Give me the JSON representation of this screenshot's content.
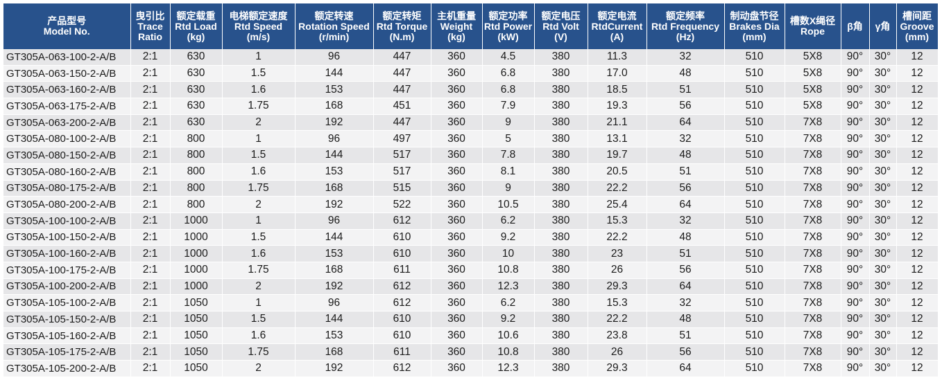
{
  "table": {
    "columns": [
      {
        "key": "model",
        "zh": "产品型号",
        "en": "Model No."
      },
      {
        "key": "trace_ratio",
        "zh": "曳引比",
        "en": "Trace Ratio"
      },
      {
        "key": "rtd_load",
        "zh": "额定载重",
        "en": "Rtd Load (kg)"
      },
      {
        "key": "rtd_speed",
        "zh": "电梯额定速度",
        "en": "Rtd Speed (m/s)"
      },
      {
        "key": "rotation_speed",
        "zh": "额定转速",
        "en": "Rotation Speed (r/min)"
      },
      {
        "key": "rtd_torque",
        "zh": "额定转矩",
        "en": "Rtd Torque (N.m)"
      },
      {
        "key": "weight",
        "zh": "主机重量",
        "en": "Weight (kg)"
      },
      {
        "key": "rtd_power",
        "zh": "额定功率",
        "en": "Rtd Power (kW)"
      },
      {
        "key": "rtd_volt",
        "zh": "额定电压",
        "en": "Rtd Volt (V)"
      },
      {
        "key": "rtd_current",
        "zh": "额定电流",
        "en": "RtdCurrent (A)"
      },
      {
        "key": "rtd_frequency",
        "zh": "额定频率",
        "en": "Rtd Frequency (Hz)"
      },
      {
        "key": "brakes_dia",
        "zh": "制动盘节径",
        "en": "Brakes Dia (mm)"
      },
      {
        "key": "rope",
        "zh": "槽数X绳径",
        "en": "Rope"
      },
      {
        "key": "beta",
        "zh": "β角",
        "en": ""
      },
      {
        "key": "gamma",
        "zh": "γ角",
        "en": ""
      },
      {
        "key": "groove",
        "zh": "槽间距",
        "en": "Groove (mm)"
      }
    ],
    "rows": [
      [
        "GT305A-063-100-2-A/B",
        "2:1",
        "630",
        "1",
        "96",
        "447",
        "360",
        "4.5",
        "380",
        "11.3",
        "32",
        "510",
        "5X8",
        "90°",
        "30°",
        "12"
      ],
      [
        "GT305A-063-150-2-A/B",
        "2:1",
        "630",
        "1.5",
        "144",
        "447",
        "360",
        "6.8",
        "380",
        "17.0",
        "48",
        "510",
        "5X8",
        "90°",
        "30°",
        "12"
      ],
      [
        "GT305A-063-160-2-A/B",
        "2:1",
        "630",
        "1.6",
        "153",
        "447",
        "360",
        "6.8",
        "380",
        "18.5",
        "51",
        "510",
        "5X8",
        "90°",
        "30°",
        "12"
      ],
      [
        "GT305A-063-175-2-A/B",
        "2:1",
        "630",
        "1.75",
        "168",
        "451",
        "360",
        "7.9",
        "380",
        "19.3",
        "56",
        "510",
        "5X8",
        "90°",
        "30°",
        "12"
      ],
      [
        "GT305A-063-200-2-A/B",
        "2:1",
        "630",
        "2",
        "192",
        "447",
        "360",
        "9",
        "380",
        "21.1",
        "64",
        "510",
        "7X8",
        "90°",
        "30°",
        "12"
      ],
      [
        "GT305A-080-100-2-A/B",
        "2:1",
        "800",
        "1",
        "96",
        "497",
        "360",
        "5",
        "380",
        "13.1",
        "32",
        "510",
        "7X8",
        "90°",
        "30°",
        "12"
      ],
      [
        "GT305A-080-150-2-A/B",
        "2:1",
        "800",
        "1.5",
        "144",
        "517",
        "360",
        "7.8",
        "380",
        "19.7",
        "48",
        "510",
        "7X8",
        "90°",
        "30°",
        "12"
      ],
      [
        "GT305A-080-160-2-A/B",
        "2:1",
        "800",
        "1.6",
        "153",
        "517",
        "360",
        "8.1",
        "380",
        "20.5",
        "51",
        "510",
        "7X8",
        "90°",
        "30°",
        "12"
      ],
      [
        "GT305A-080-175-2-A/B",
        "2:1",
        "800",
        "1.75",
        "168",
        "515",
        "360",
        "9",
        "380",
        "22.2",
        "56",
        "510",
        "7X8",
        "90°",
        "30°",
        "12"
      ],
      [
        "GT305A-080-200-2-A/B",
        "2:1",
        "800",
        "2",
        "192",
        "522",
        "360",
        "10.5",
        "380",
        "25.4",
        "64",
        "510",
        "7X8",
        "90°",
        "30°",
        "12"
      ],
      [
        "GT305A-100-100-2-A/B",
        "2:1",
        "1000",
        "1",
        "96",
        "612",
        "360",
        "6.2",
        "380",
        "15.3",
        "32",
        "510",
        "7X8",
        "90°",
        "30°",
        "12"
      ],
      [
        "GT305A-100-150-2-A/B",
        "2:1",
        "1000",
        "1.5",
        "144",
        "610",
        "360",
        "9.2",
        "380",
        "22.2",
        "48",
        "510",
        "7X8",
        "90°",
        "30°",
        "12"
      ],
      [
        "GT305A-100-160-2-A/B",
        "2:1",
        "1000",
        "1.6",
        "153",
        "610",
        "360",
        "10",
        "380",
        "23",
        "51",
        "510",
        "7X8",
        "90°",
        "30°",
        "12"
      ],
      [
        "GT305A-100-175-2-A/B",
        "2:1",
        "1000",
        "1.75",
        "168",
        "611",
        "360",
        "10.8",
        "380",
        "26",
        "56",
        "510",
        "7X8",
        "90°",
        "30°",
        "12"
      ],
      [
        "GT305A-100-200-2-A/B",
        "2:1",
        "1000",
        "2",
        "192",
        "612",
        "360",
        "12.3",
        "380",
        "29.3",
        "64",
        "510",
        "7X8",
        "90°",
        "30°",
        "12"
      ],
      [
        "GT305A-105-100-2-A/B",
        "2:1",
        "1050",
        "1",
        "96",
        "612",
        "360",
        "6.2",
        "380",
        "15.3",
        "32",
        "510",
        "7X8",
        "90°",
        "30°",
        "12"
      ],
      [
        "GT305A-105-150-2-A/B",
        "2:1",
        "1050",
        "1.5",
        "144",
        "610",
        "360",
        "9.2",
        "380",
        "22.2",
        "48",
        "510",
        "7X8",
        "90°",
        "30°",
        "12"
      ],
      [
        "GT305A-105-160-2-A/B",
        "2:1",
        "1050",
        "1.6",
        "153",
        "610",
        "360",
        "10.6",
        "380",
        "23.8",
        "51",
        "510",
        "7X8",
        "90°",
        "30°",
        "12"
      ],
      [
        "GT305A-105-175-2-A/B",
        "2:1",
        "1050",
        "1.75",
        "168",
        "611",
        "360",
        "10.8",
        "380",
        "26",
        "56",
        "510",
        "7X8",
        "90°",
        "30°",
        "12"
      ],
      [
        "GT305A-105-200-2-A/B",
        "2:1",
        "1050",
        "2",
        "192",
        "612",
        "360",
        "12.3",
        "380",
        "29.3",
        "64",
        "510",
        "7X8",
        "90°",
        "30°",
        "12"
      ]
    ]
  }
}
